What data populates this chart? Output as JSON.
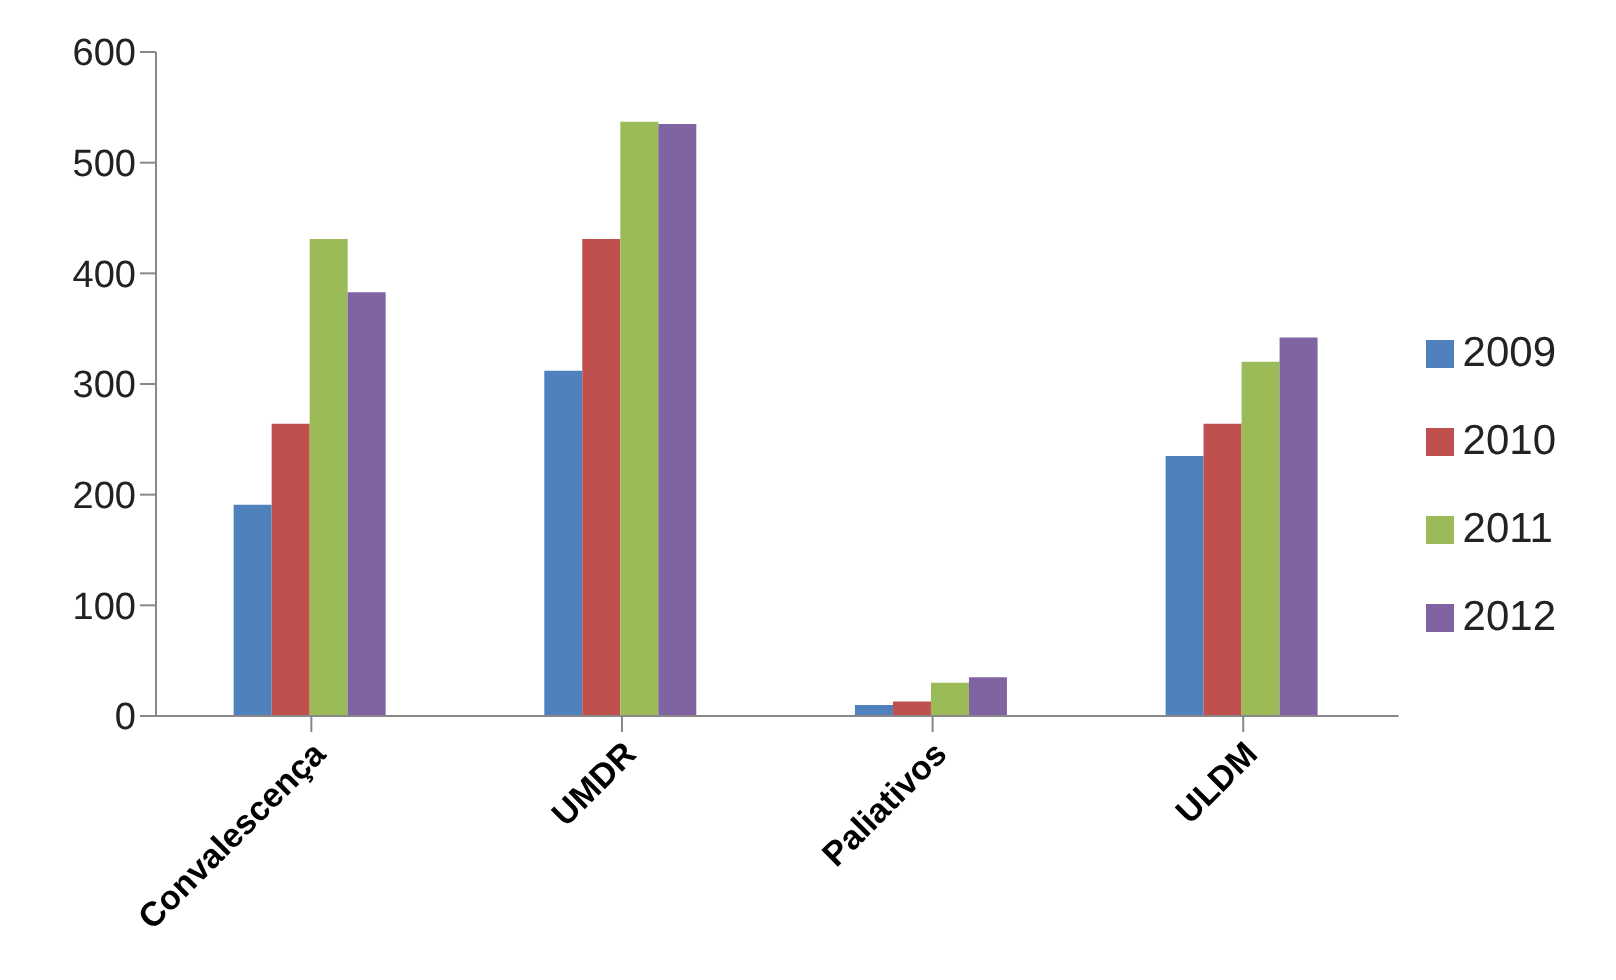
{
  "chart_data": {
    "type": "bar",
    "categories": [
      "Convalescença",
      "UMDR",
      "Paliativos",
      "ULDM"
    ],
    "series": [
      {
        "name": "2009",
        "color": "#4f81bd",
        "values": [
          191,
          312,
          10,
          235
        ]
      },
      {
        "name": "2010",
        "color": "#c0504d",
        "values": [
          264,
          431,
          13,
          264
        ]
      },
      {
        "name": "2011",
        "color": "#9bbb59",
        "values": [
          431,
          537,
          30,
          320
        ]
      },
      {
        "name": "2012",
        "color": "#8064a2",
        "values": [
          383,
          535,
          35,
          342
        ]
      }
    ],
    "ylim": [
      0,
      600
    ],
    "yticks": [
      0,
      100,
      200,
      300,
      400,
      500,
      600
    ],
    "grid": false,
    "legend": "right"
  }
}
